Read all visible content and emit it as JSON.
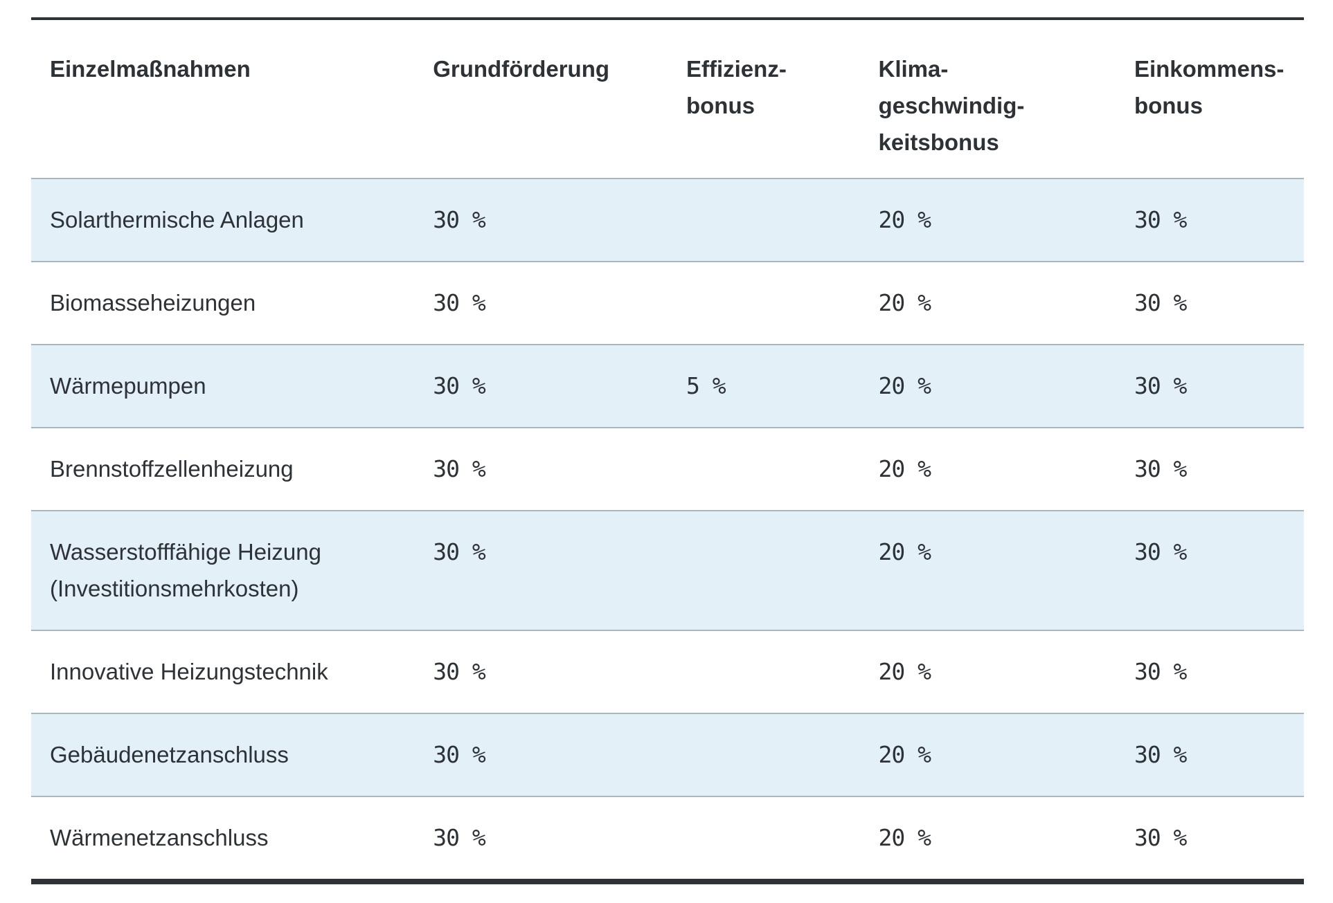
{
  "colors": {
    "text": "#2d3237",
    "row_highlight": "#e4f0f8",
    "row_border": "#a9b6bd",
    "frame_border": "#2e3338",
    "page_background": "#ffffff"
  },
  "table": {
    "columns": [
      {
        "id": "einzelmassnahmen",
        "label": "Einzelmaßnahmen"
      },
      {
        "id": "grundfoerderung",
        "label": "Grundförderung"
      },
      {
        "id": "effizienzbonus",
        "label": "Effizienz-\nbonus"
      },
      {
        "id": "klimageschwindigkeitsbonus",
        "label": "Klima-\ngeschwindig-\nkeitsbonus"
      },
      {
        "id": "einkommensbonus",
        "label": "Einkommens-\nbonus"
      }
    ],
    "rows": [
      {
        "label": "Solarthermische Anlagen",
        "values": [
          "30 %",
          "",
          "20 %",
          "30 %"
        ],
        "highlighted": true
      },
      {
        "label": "Biomasseheizungen",
        "values": [
          "30 %",
          "",
          "20 %",
          "30 %"
        ],
        "highlighted": false
      },
      {
        "label": "Wärmepumpen",
        "values": [
          "30 %",
          "5 %",
          "20 %",
          "30 %"
        ],
        "highlighted": true
      },
      {
        "label": "Brennstoffzellenheizung",
        "values": [
          "30 %",
          "",
          "20 %",
          "30 %"
        ],
        "highlighted": false
      },
      {
        "label": "Wasserstofffähige Heizung (Investitionsmehrkosten)",
        "values": [
          "30 %",
          "",
          "20 %",
          "30 %"
        ],
        "highlighted": true
      },
      {
        "label": "Innovative Heizungstechnik",
        "values": [
          "30 %",
          "",
          "20 %",
          "30 %"
        ],
        "highlighted": false
      },
      {
        "label": "Gebäudenetzanschluss",
        "values": [
          "30 %",
          "",
          "20 %",
          "30 %"
        ],
        "highlighted": true
      },
      {
        "label": "Wärmenetzanschluss",
        "values": [
          "30 %",
          "",
          "20 %",
          "30 %"
        ],
        "highlighted": false
      }
    ]
  }
}
